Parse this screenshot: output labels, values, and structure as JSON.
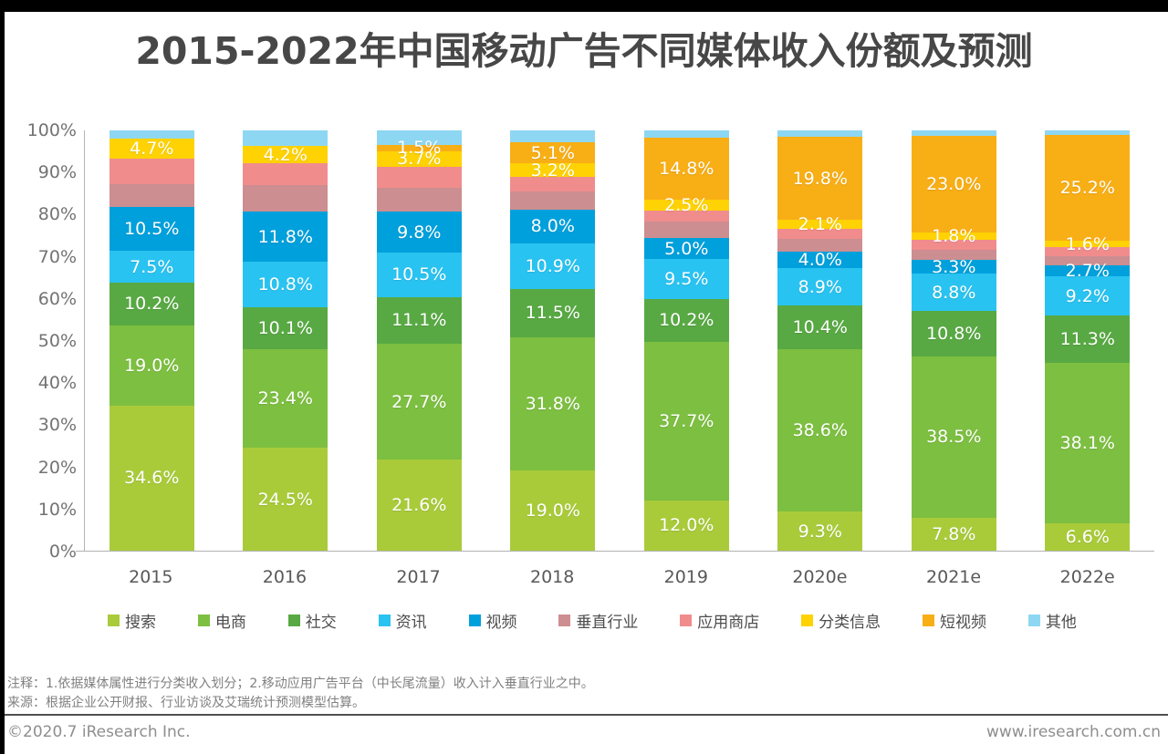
{
  "page": {
    "title": "2015-2022年中国移动广告不同媒体收入份额及预测",
    "notes_line1": "注释：1.依据媒体属性进行分类收入划分；2.移动应用广告平台（中长尾流量）收入计入垂直行业之中。",
    "notes_line2": "来源：根据企业公开财报、行业访谈及艾瑞统计预测模型估算。",
    "footer_left": "©2020.7 iResearch Inc.",
    "footer_right": "www.iresearch.com.cn"
  },
  "chart_data": {
    "type": "bar",
    "stacked": true,
    "title": "2015-2022年中国移动广告不同媒体收入份额及预测",
    "grid": false,
    "legend_position": "bottom",
    "categories": [
      "2015",
      "2016",
      "2017",
      "2018",
      "2019",
      "2020e",
      "2021e",
      "2022e"
    ],
    "y_axis": {
      "min": 0,
      "max": 100,
      "ticks": [
        "0%",
        "10%",
        "20%",
        "30%",
        "40%",
        "50%",
        "60%",
        "70%",
        "80%",
        "90%",
        "100%"
      ]
    },
    "series": [
      {
        "name": "搜索",
        "color": "#A9CB3A",
        "values": [
          34.6,
          24.5,
          21.6,
          19.0,
          12.0,
          9.3,
          7.8,
          6.6
        ],
        "labels": [
          "34.6%",
          "24.5%",
          "21.6%",
          "19.0%",
          "12.0%",
          "9.3%",
          "7.8%",
          "6.6%"
        ]
      },
      {
        "name": "电商",
        "color": "#7DBF41",
        "values": [
          19.0,
          23.4,
          27.7,
          31.8,
          37.7,
          38.6,
          38.5,
          38.1
        ],
        "labels": [
          "19.0%",
          "23.4%",
          "27.7%",
          "31.8%",
          "37.7%",
          "38.6%",
          "38.5%",
          "38.1%"
        ]
      },
      {
        "name": "社交",
        "color": "#58A943",
        "values": [
          10.2,
          10.1,
          11.1,
          11.5,
          10.2,
          10.4,
          10.8,
          11.3
        ],
        "labels": [
          "10.2%",
          "10.1%",
          "11.1%",
          "11.5%",
          "10.2%",
          "10.4%",
          "10.8%",
          "11.3%"
        ]
      },
      {
        "name": "资讯",
        "color": "#29C3F1",
        "values": [
          7.5,
          10.8,
          10.5,
          10.9,
          9.5,
          8.9,
          8.8,
          9.2
        ],
        "labels": [
          "7.5%",
          "10.8%",
          "10.5%",
          "10.9%",
          "9.5%",
          "8.9%",
          "8.8%",
          "9.2%"
        ]
      },
      {
        "name": "视频",
        "color": "#00A0DC",
        "values": [
          10.5,
          11.8,
          9.8,
          8.0,
          5.0,
          4.0,
          3.3,
          2.7
        ],
        "labels": [
          "10.5%",
          "11.8%",
          "9.8%",
          "8.0%",
          "5.0%",
          "4.0%",
          "3.3%",
          "2.7%"
        ]
      },
      {
        "name": "垂直行业",
        "color": "#CC8E90",
        "values": [
          5.4,
          6.5,
          5.7,
          4.2,
          3.9,
          2.9,
          2.4,
          2.1
        ],
        "labels": [
          "",
          "",
          "",
          "",
          "",
          "",
          "",
          ""
        ]
      },
      {
        "name": "应用商店",
        "color": "#F18C8D",
        "values": [
          6.1,
          5.0,
          5.0,
          3.5,
          2.7,
          2.5,
          2.4,
          2.2
        ],
        "labels": [
          "",
          "",
          "",
          "",
          "",
          "",
          "",
          ""
        ]
      },
      {
        "name": "分类信息",
        "color": "#FFD203",
        "values": [
          4.7,
          4.2,
          3.7,
          3.2,
          2.5,
          2.1,
          1.8,
          1.6
        ],
        "labels": [
          "4.7%",
          "4.2%",
          "3.7%",
          "3.2%",
          "2.5%",
          "2.1%",
          "1.8%",
          "1.6%"
        ]
      },
      {
        "name": "短视频",
        "color": "#F8AE15",
        "values": [
          0,
          0,
          1.5,
          5.1,
          14.8,
          19.8,
          23.0,
          25.2
        ],
        "labels": [
          "",
          "",
          "1.5%",
          "5.1%",
          "14.8%",
          "19.8%",
          "23.0%",
          "25.2%"
        ]
      },
      {
        "name": "其他",
        "color": "#8DD7F3",
        "values": [
          2.0,
          3.7,
          3.4,
          2.8,
          1.7,
          1.5,
          1.2,
          1.0
        ],
        "labels": [
          "",
          "",
          "",
          "",
          "",
          "",
          "",
          ""
        ]
      }
    ]
  }
}
